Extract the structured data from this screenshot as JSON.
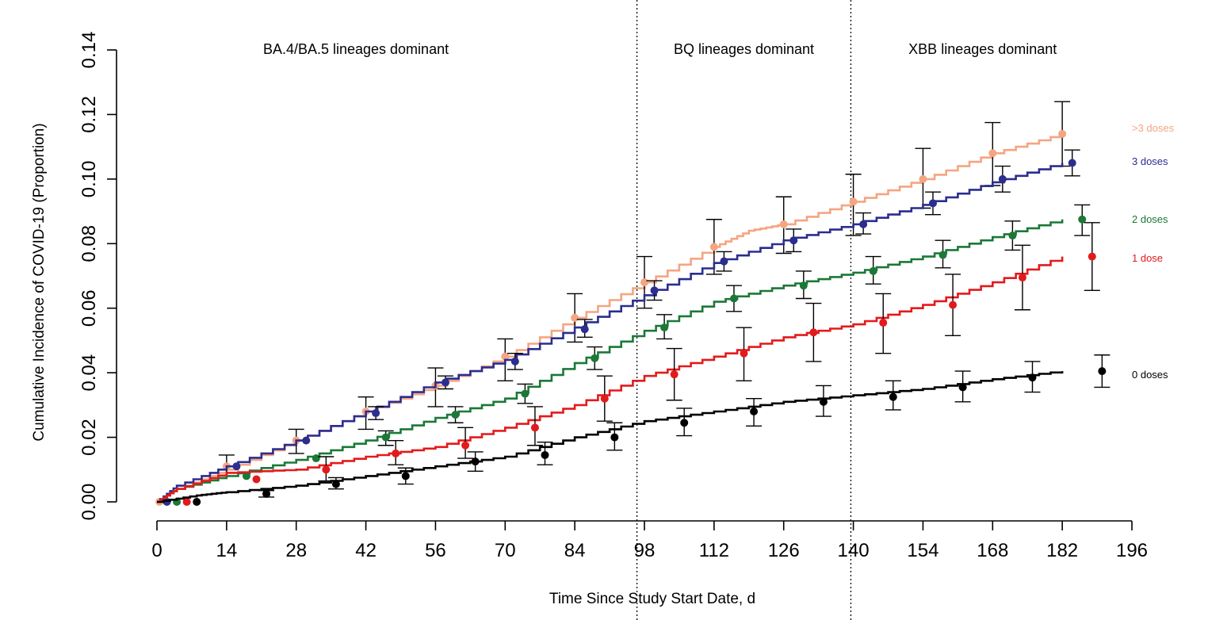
{
  "chart_data": {
    "type": "line",
    "xlabel": "Time Since Study Start Date, d",
    "ylabel": "Cumulative Incidence of COVID-19 (Proportion)",
    "x_ticks": [
      0,
      14,
      28,
      42,
      56,
      70,
      84,
      98,
      112,
      126,
      140,
      154,
      168,
      182,
      196
    ],
    "x_tick_labels": [
      "0",
      "14",
      "28",
      "42",
      "56",
      "70",
      "84",
      "98",
      "112",
      "126",
      "140",
      "154",
      "168",
      "182",
      "196"
    ],
    "y_ticks": [
      0,
      0.02,
      0.04,
      0.06,
      0.08,
      0.1,
      0.12,
      0.14
    ],
    "y_tick_labels": [
      "0.00",
      "0.02",
      "0.04",
      "0.06",
      "0.08",
      "0.10",
      "0.12",
      "0.14"
    ],
    "xlim": [
      0,
      196
    ],
    "ylim": [
      0,
      0.14
    ],
    "grid": false,
    "legend_placement": "right",
    "vertical_lines": [
      96.5,
      139.5
    ],
    "periods": [
      {
        "label": "BA.4/BA.5 lineages dominant",
        "center_x": 40
      },
      {
        "label": "BQ lineages dominant",
        "center_x": 118
      },
      {
        "label": "XBB lineages dominant",
        "center_x": 166
      }
    ],
    "series": [
      {
        "name": ">3 doses",
        "color": "#f4a582",
        "curve": [
          [
            0,
            0
          ],
          [
            4,
            0.004
          ],
          [
            14,
            0.01
          ],
          [
            28,
            0.019
          ],
          [
            42,
            0.028
          ],
          [
            56,
            0.036
          ],
          [
            70,
            0.045
          ],
          [
            84,
            0.057
          ],
          [
            98,
            0.068
          ],
          [
            112,
            0.079
          ],
          [
            119,
            0.084
          ],
          [
            126,
            0.086
          ],
          [
            140,
            0.093
          ],
          [
            154,
            0.1
          ],
          [
            168,
            0.108
          ],
          [
            182,
            0.114
          ]
        ],
        "points": [
          {
            "x": 0.5,
            "y": 0.0
          },
          {
            "x": 14,
            "y": 0.011,
            "lo": 0.008,
            "hi": 0.0145
          },
          {
            "x": 28,
            "y": 0.019,
            "lo": 0.015,
            "hi": 0.0225
          },
          {
            "x": 42,
            "y": 0.028,
            "lo": 0.0225,
            "hi": 0.0325
          },
          {
            "x": 56,
            "y": 0.036,
            "lo": 0.0295,
            "hi": 0.0415
          },
          {
            "x": 70,
            "y": 0.045,
            "lo": 0.0375,
            "hi": 0.0505
          },
          {
            "x": 84,
            "y": 0.057,
            "lo": 0.0495,
            "hi": 0.0645
          },
          {
            "x": 98,
            "y": 0.068,
            "lo": 0.06,
            "hi": 0.076
          },
          {
            "x": 112,
            "y": 0.079,
            "lo": 0.0705,
            "hi": 0.0875
          },
          {
            "x": 126,
            "y": 0.086,
            "lo": 0.077,
            "hi": 0.0945
          },
          {
            "x": 140,
            "y": 0.093,
            "lo": 0.0825,
            "hi": 0.1015
          },
          {
            "x": 154,
            "y": 0.1,
            "lo": 0.091,
            "hi": 0.1095
          },
          {
            "x": 168,
            "y": 0.108,
            "lo": 0.098,
            "hi": 0.1175
          },
          {
            "x": 182,
            "y": 0.114,
            "lo": 0.104,
            "hi": 0.124
          }
        ]
      },
      {
        "name": "3 doses",
        "color": "#2b2d8f",
        "curve": [
          [
            0,
            0
          ],
          [
            4,
            0.005
          ],
          [
            14,
            0.011
          ],
          [
            28,
            0.019
          ],
          [
            42,
            0.028
          ],
          [
            56,
            0.037
          ],
          [
            70,
            0.044
          ],
          [
            84,
            0.054
          ],
          [
            98,
            0.064
          ],
          [
            112,
            0.074
          ],
          [
            126,
            0.081
          ],
          [
            140,
            0.086
          ],
          [
            154,
            0.092
          ],
          [
            168,
            0.099
          ],
          [
            182,
            0.105
          ]
        ],
        "points": [
          {
            "x": 2,
            "y": 0.0
          },
          {
            "x": 16,
            "y": 0.011
          },
          {
            "x": 30,
            "y": 0.019
          },
          {
            "x": 44,
            "y": 0.0275,
            "lo": 0.0255,
            "hi": 0.0295
          },
          {
            "x": 58,
            "y": 0.037,
            "lo": 0.035,
            "hi": 0.039
          },
          {
            "x": 72,
            "y": 0.0435,
            "lo": 0.041,
            "hi": 0.046
          },
          {
            "x": 86,
            "y": 0.0535,
            "lo": 0.051,
            "hi": 0.0565
          },
          {
            "x": 100,
            "y": 0.0655,
            "lo": 0.0625,
            "hi": 0.0685
          },
          {
            "x": 114,
            "y": 0.0745,
            "lo": 0.0715,
            "hi": 0.0775
          },
          {
            "x": 128,
            "y": 0.081,
            "lo": 0.0775,
            "hi": 0.0845
          },
          {
            "x": 142,
            "y": 0.086,
            "lo": 0.083,
            "hi": 0.0895
          },
          {
            "x": 156,
            "y": 0.0925,
            "lo": 0.089,
            "hi": 0.096
          },
          {
            "x": 170,
            "y": 0.1,
            "lo": 0.096,
            "hi": 0.104
          },
          {
            "x": 184,
            "y": 0.105,
            "lo": 0.101,
            "hi": 0.109
          }
        ]
      },
      {
        "name": "2 doses",
        "color": "#1b7837",
        "curve": [
          [
            0,
            0
          ],
          [
            4,
            0.004
          ],
          [
            14,
            0.008
          ],
          [
            28,
            0.013
          ],
          [
            42,
            0.019
          ],
          [
            56,
            0.026
          ],
          [
            70,
            0.032
          ],
          [
            84,
            0.043
          ],
          [
            98,
            0.053
          ],
          [
            112,
            0.062
          ],
          [
            126,
            0.067
          ],
          [
            140,
            0.071
          ],
          [
            154,
            0.076
          ],
          [
            168,
            0.082
          ],
          [
            182,
            0.0875
          ]
        ],
        "points": [
          {
            "x": 4,
            "y": 0.0
          },
          {
            "x": 18,
            "y": 0.008
          },
          {
            "x": 32,
            "y": 0.0135
          },
          {
            "x": 46,
            "y": 0.02,
            "lo": 0.0175,
            "hi": 0.022
          },
          {
            "x": 60,
            "y": 0.027,
            "lo": 0.0245,
            "hi": 0.0295
          },
          {
            "x": 74,
            "y": 0.0335,
            "lo": 0.0305,
            "hi": 0.0365
          },
          {
            "x": 88,
            "y": 0.0445,
            "lo": 0.041,
            "hi": 0.048
          },
          {
            "x": 102,
            "y": 0.054,
            "lo": 0.0505,
            "hi": 0.058
          },
          {
            "x": 116,
            "y": 0.063,
            "lo": 0.059,
            "hi": 0.067
          },
          {
            "x": 130,
            "y": 0.067,
            "lo": 0.063,
            "hi": 0.0715
          },
          {
            "x": 144,
            "y": 0.0715,
            "lo": 0.0675,
            "hi": 0.076
          },
          {
            "x": 158,
            "y": 0.0765,
            "lo": 0.0725,
            "hi": 0.081
          },
          {
            "x": 172,
            "y": 0.0825,
            "lo": 0.078,
            "hi": 0.087
          },
          {
            "x": 186,
            "y": 0.0875,
            "lo": 0.0825,
            "hi": 0.092
          }
        ]
      },
      {
        "name": "1 dose",
        "color": "#e31a1c",
        "curve": [
          [
            0,
            0
          ],
          [
            4,
            0.004
          ],
          [
            14,
            0.009
          ],
          [
            28,
            0.01
          ],
          [
            42,
            0.014
          ],
          [
            56,
            0.017
          ],
          [
            70,
            0.023
          ],
          [
            84,
            0.03
          ],
          [
            98,
            0.039
          ],
          [
            112,
            0.045
          ],
          [
            126,
            0.051
          ],
          [
            140,
            0.055
          ],
          [
            154,
            0.061
          ],
          [
            168,
            0.068
          ],
          [
            182,
            0.076
          ]
        ],
        "points": [
          {
            "x": 6,
            "y": 0.0
          },
          {
            "x": 20,
            "y": 0.007
          },
          {
            "x": 34,
            "y": 0.01,
            "lo": 0.0065,
            "hi": 0.014
          },
          {
            "x": 48,
            "y": 0.015,
            "lo": 0.0115,
            "hi": 0.019
          },
          {
            "x": 62,
            "y": 0.0175,
            "lo": 0.0135,
            "hi": 0.023
          },
          {
            "x": 76,
            "y": 0.023,
            "lo": 0.0175,
            "hi": 0.0295
          },
          {
            "x": 90,
            "y": 0.032,
            "lo": 0.025,
            "hi": 0.039
          },
          {
            "x": 104,
            "y": 0.0395,
            "lo": 0.0315,
            "hi": 0.0475
          },
          {
            "x": 118,
            "y": 0.046,
            "lo": 0.0375,
            "hi": 0.054
          },
          {
            "x": 132,
            "y": 0.0525,
            "lo": 0.0435,
            "hi": 0.0615
          },
          {
            "x": 146,
            "y": 0.0555,
            "lo": 0.046,
            "hi": 0.0645
          },
          {
            "x": 160,
            "y": 0.061,
            "lo": 0.0515,
            "hi": 0.0705
          },
          {
            "x": 174,
            "y": 0.0695,
            "lo": 0.0595,
            "hi": 0.0795
          },
          {
            "x": 188,
            "y": 0.076,
            "lo": 0.0655,
            "hi": 0.0865
          }
        ]
      },
      {
        "name": "0 doses",
        "color": "#000000",
        "curve": [
          [
            0,
            0
          ],
          [
            8,
            0.002
          ],
          [
            14,
            0.003
          ],
          [
            28,
            0.005
          ],
          [
            42,
            0.008
          ],
          [
            56,
            0.011
          ],
          [
            70,
            0.014
          ],
          [
            84,
            0.02
          ],
          [
            98,
            0.025
          ],
          [
            112,
            0.028
          ],
          [
            126,
            0.031
          ],
          [
            140,
            0.033
          ],
          [
            154,
            0.035
          ],
          [
            168,
            0.038
          ],
          [
            182,
            0.0405
          ]
        ],
        "points": [
          {
            "x": 8,
            "y": 0.0
          },
          {
            "x": 22,
            "y": 0.0025,
            "lo": 0.0015,
            "hi": 0.0035
          },
          {
            "x": 36,
            "y": 0.0055,
            "lo": 0.004,
            "hi": 0.0075
          },
          {
            "x": 50,
            "y": 0.008,
            "lo": 0.0055,
            "hi": 0.0105
          },
          {
            "x": 64,
            "y": 0.0125,
            "lo": 0.0095,
            "hi": 0.0155
          },
          {
            "x": 78,
            "y": 0.0145,
            "lo": 0.0115,
            "hi": 0.0185
          },
          {
            "x": 92,
            "y": 0.02,
            "lo": 0.016,
            "hi": 0.0245
          },
          {
            "x": 106,
            "y": 0.0245,
            "lo": 0.0205,
            "hi": 0.029
          },
          {
            "x": 120,
            "y": 0.028,
            "lo": 0.0235,
            "hi": 0.032
          },
          {
            "x": 134,
            "y": 0.031,
            "lo": 0.0265,
            "hi": 0.036
          },
          {
            "x": 148,
            "y": 0.0325,
            "lo": 0.0285,
            "hi": 0.0375
          },
          {
            "x": 162,
            "y": 0.0355,
            "lo": 0.031,
            "hi": 0.0405
          },
          {
            "x": 176,
            "y": 0.0385,
            "lo": 0.034,
            "hi": 0.0435
          },
          {
            "x": 190,
            "y": 0.0405,
            "lo": 0.0355,
            "hi": 0.0455
          }
        ]
      }
    ]
  }
}
